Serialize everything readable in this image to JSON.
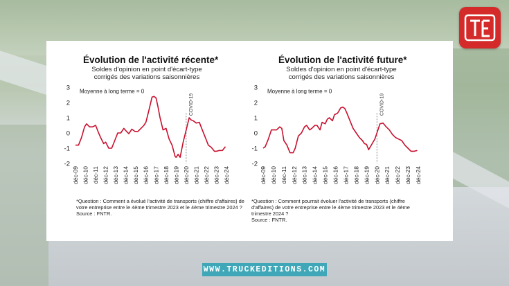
{
  "branding": {
    "logo_icon": "truckeditions-logo-icon",
    "url_label": "WWW.TRUCKEDITIONS.COM",
    "logo_color": "#d42a2a",
    "url_bg_color": "#3fa7b7"
  },
  "chart_data": [
    {
      "type": "line",
      "title": "Évolution de l'activité récente*",
      "subtitle_line1": "Soldes d'opinion en point d'écart-type",
      "subtitle_line2": "corrigés des variations saisonnières",
      "annotation_mean": "Moyenne à long terme = 0",
      "annotation_event": "COVID-19",
      "event_x": 2020.9,
      "ylim": [
        -2,
        3
      ],
      "yticks": [
        -2,
        -1,
        0,
        1,
        2,
        3
      ],
      "xlim": [
        2009.9,
        2024.9
      ],
      "xticks": [
        "déc-09",
        "déc-10",
        "déc-11",
        "déc-12",
        "déc-13",
        "déc-14",
        "déc-15",
        "déc-16",
        "déc-17",
        "déc-18",
        "déc-19",
        "déc-20",
        "déc-21",
        "déc-22",
        "déc-23",
        "déc-24"
      ],
      "color": "#c8102e",
      "series": [
        {
          "x": [
            2009.9,
            2010.2,
            2010.5,
            2010.8,
            2011.0,
            2011.3,
            2011.6,
            2011.9,
            2012.2,
            2012.4,
            2012.7,
            2012.9,
            2013.2,
            2013.5,
            2013.8,
            2014.1,
            2014.4,
            2014.7,
            2014.9,
            2015.2,
            2015.5,
            2015.8,
            2016.1,
            2016.4,
            2016.7,
            2016.9,
            2017.2,
            2017.5,
            2017.7,
            2017.9,
            2018.1,
            2018.3,
            2018.6,
            2018.9,
            2019.2,
            2019.5,
            2019.8,
            2019.9,
            2020.1,
            2020.3,
            2020.6,
            2020.9,
            2021.2,
            2021.4,
            2021.6,
            2021.9,
            2022.2,
            2022.5,
            2022.8,
            2023.1,
            2023.4,
            2023.7,
            2023.9,
            2024.2,
            2024.5,
            2024.8
          ],
          "values": [
            -0.8,
            -0.8,
            -0.3,
            0.4,
            0.6,
            0.4,
            0.4,
            0.5,
            0.0,
            -0.3,
            -0.7,
            -0.6,
            -1.0,
            -1.0,
            -0.5,
            0.0,
            0.0,
            0.3,
            0.15,
            -0.05,
            0.25,
            0.1,
            0.1,
            0.3,
            0.5,
            0.7,
            1.5,
            2.35,
            2.4,
            2.3,
            1.7,
            1.0,
            0.2,
            0.3,
            -0.4,
            -0.8,
            -1.55,
            -1.6,
            -1.4,
            -1.6,
            -0.6,
            0.2,
            1.0,
            0.85,
            0.8,
            0.65,
            0.7,
            0.2,
            -0.3,
            -0.8,
            -0.95,
            -1.2,
            -1.2,
            -1.15,
            -1.15,
            -0.9
          ]
        }
      ],
      "footnote": [
        "*Question : Comment a évolué l'activité de transports (chiffre d'affaires) de",
        "votre entreprise entre le 4ème trimestre 2023 et le 4ème trimestre 2024 ?",
        "Source : FNTR."
      ]
    },
    {
      "type": "line",
      "title": "Évolution de l'activité future*",
      "subtitle_line1": "Soldes d'opinion en point d'écart-type",
      "subtitle_line2": "corrigés des variations saisonnières",
      "annotation_mean": "Moyenne à long terme = 0",
      "annotation_event": "COVID-19",
      "event_x": 2020.9,
      "ylim": [
        -2,
        3
      ],
      "yticks": [
        -2,
        -1,
        0,
        1,
        2,
        3
      ],
      "xlim": [
        2009.9,
        2024.9
      ],
      "xticks": [
        "déc-09",
        "déc-10",
        "déc-11",
        "déc-12",
        "déc-13",
        "déc-14",
        "déc-15",
        "déc-16",
        "déc-17",
        "déc-18",
        "déc-19",
        "déc-20",
        "déc-21",
        "déc-22",
        "déc-23",
        "déc-24"
      ],
      "color": "#c8102e",
      "series": [
        {
          "x": [
            2009.9,
            2010.1,
            2010.4,
            2010.7,
            2010.9,
            2011.2,
            2011.5,
            2011.7,
            2011.9,
            2012.2,
            2012.5,
            2012.8,
            2013.0,
            2013.3,
            2013.6,
            2013.9,
            2014.1,
            2014.4,
            2014.6,
            2014.9,
            2015.1,
            2015.4,
            2015.6,
            2015.9,
            2016.1,
            2016.3,
            2016.6,
            2016.8,
            2017.1,
            2017.4,
            2017.6,
            2017.8,
            2018.0,
            2018.3,
            2018.6,
            2018.9,
            2019.2,
            2019.5,
            2019.7,
            2019.9,
            2020.1,
            2020.4,
            2020.7,
            2020.9,
            2021.2,
            2021.5,
            2021.8,
            2022.1,
            2022.4,
            2022.7,
            2023.0,
            2023.3,
            2023.6,
            2023.9,
            2024.2,
            2024.5,
            2024.8
          ],
          "values": [
            -1.0,
            -0.9,
            -0.4,
            0.2,
            0.2,
            0.2,
            0.4,
            0.3,
            -0.5,
            -0.8,
            -1.3,
            -1.3,
            -1.0,
            -0.2,
            0.0,
            0.4,
            0.5,
            0.2,
            0.3,
            0.5,
            0.5,
            0.2,
            0.7,
            0.6,
            0.9,
            1.0,
            0.8,
            1.2,
            1.3,
            1.65,
            1.7,
            1.6,
            1.3,
            0.8,
            0.3,
            0.0,
            -0.3,
            -0.5,
            -0.7,
            -0.75,
            -1.1,
            -0.75,
            -0.4,
            0.0,
            0.6,
            0.65,
            0.4,
            0.2,
            -0.1,
            -0.3,
            -0.4,
            -0.5,
            -0.8,
            -1.0,
            -1.2,
            -1.2,
            -1.15
          ]
        }
      ],
      "footnote": [
        "*Question : Comment pourrait évoluer l'activité de transports (chiffre",
        "d'affaires) de votre entreprise entre le 4ème trimestre 2023 et le 4ème",
        "trimestre 2024 ?",
        "Source : FNTR."
      ]
    }
  ]
}
